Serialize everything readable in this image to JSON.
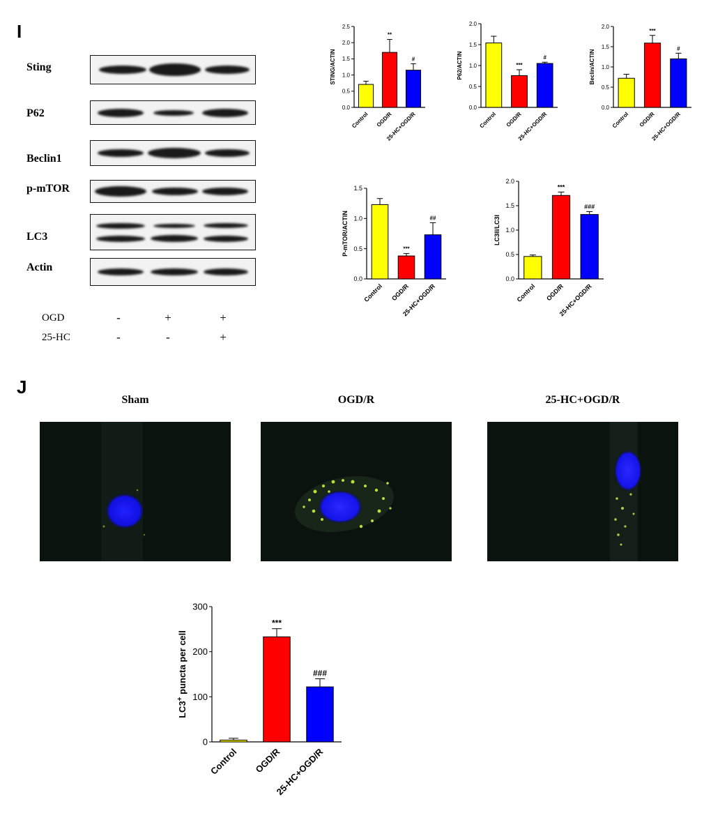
{
  "panels": {
    "i": "I",
    "j": "J"
  },
  "western_blot": {
    "proteins": [
      "Sting",
      "P62",
      "Beclin1",
      "p-mTOR",
      "LC3",
      "Actin"
    ],
    "treatments": [
      {
        "label": "OGD",
        "signs": [
          "-",
          "+",
          "+"
        ]
      },
      {
        "label": "25-HC",
        "signs": [
          "-",
          "-",
          "+"
        ]
      }
    ]
  },
  "microscopy": {
    "titles": [
      "Sham",
      "OGD/R",
      "25-HC+OGD/R"
    ]
  },
  "colors": {
    "control": "#ffff00",
    "ogdr": "#ff0000",
    "hc": "#0000ff"
  },
  "chart_data": [
    {
      "type": "bar",
      "categories": [
        "Control",
        "OGD/R",
        "25-HC+OGD/R"
      ],
      "values": [
        0.71,
        1.7,
        1.15
      ],
      "errors": [
        0.1,
        0.4,
        0.2
      ],
      "annotations": [
        "",
        "**",
        "#"
      ],
      "ylabel": "STING/ACTIN",
      "ylim": [
        0,
        2.5
      ],
      "yticks": [
        0.0,
        0.5,
        1.0,
        1.5,
        2.0,
        2.5
      ]
    },
    {
      "type": "bar",
      "categories": [
        "Control",
        "OGD/R",
        "25-HC+OGD/R"
      ],
      "values": [
        1.54,
        0.76,
        1.05
      ],
      "errors": [
        0.16,
        0.14,
        0.03
      ],
      "annotations": [
        "",
        "***",
        "#"
      ],
      "ylabel": "P62/ACTIN",
      "ylim": [
        0,
        2.0
      ],
      "yticks": [
        0.0,
        0.5,
        1.0,
        1.5,
        2.0
      ]
    },
    {
      "type": "bar",
      "categories": [
        "Control",
        "OGD/R",
        "25-HC+OGD/R"
      ],
      "values": [
        0.72,
        1.59,
        1.2
      ],
      "errors": [
        0.1,
        0.19,
        0.14
      ],
      "annotations": [
        "",
        "***",
        "#"
      ],
      "ylabel": "Beclin/ACTIN",
      "ylim": [
        0,
        2.0
      ],
      "yticks": [
        0.0,
        0.5,
        1.0,
        1.5,
        2.0
      ]
    },
    {
      "type": "bar",
      "categories": [
        "Control",
        "OGD/R",
        "25-HC+OGD/R"
      ],
      "values": [
        1.23,
        0.38,
        0.73
      ],
      "errors": [
        0.1,
        0.04,
        0.2
      ],
      "annotations": [
        "",
        "***",
        "##"
      ],
      "ylabel": "P-mTOR/ACTIN",
      "ylim": [
        0,
        1.5
      ],
      "yticks": [
        0.0,
        0.5,
        1.0,
        1.5
      ]
    },
    {
      "type": "bar",
      "categories": [
        "Control",
        "OGD/R",
        "25-HC+OGD/R"
      ],
      "values": [
        0.46,
        1.71,
        1.32
      ],
      "errors": [
        0.03,
        0.07,
        0.06
      ],
      "annotations": [
        "",
        "***",
        "###"
      ],
      "ylabel": "LC3II/LC3I",
      "ylim": [
        0,
        2.0
      ],
      "yticks": [
        0.0,
        0.5,
        1.0,
        1.5,
        2.0
      ]
    },
    {
      "type": "bar",
      "categories": [
        "Control",
        "OGD/R",
        "25-HC+OGD/R"
      ],
      "values": [
        4,
        233,
        122
      ],
      "errors": [
        4,
        18,
        18
      ],
      "annotations": [
        "",
        "***",
        "###"
      ],
      "ylabel": "LC3+ puncta per cell",
      "ylim": [
        0,
        300
      ],
      "yticks": [
        0,
        100,
        200,
        300
      ]
    }
  ]
}
